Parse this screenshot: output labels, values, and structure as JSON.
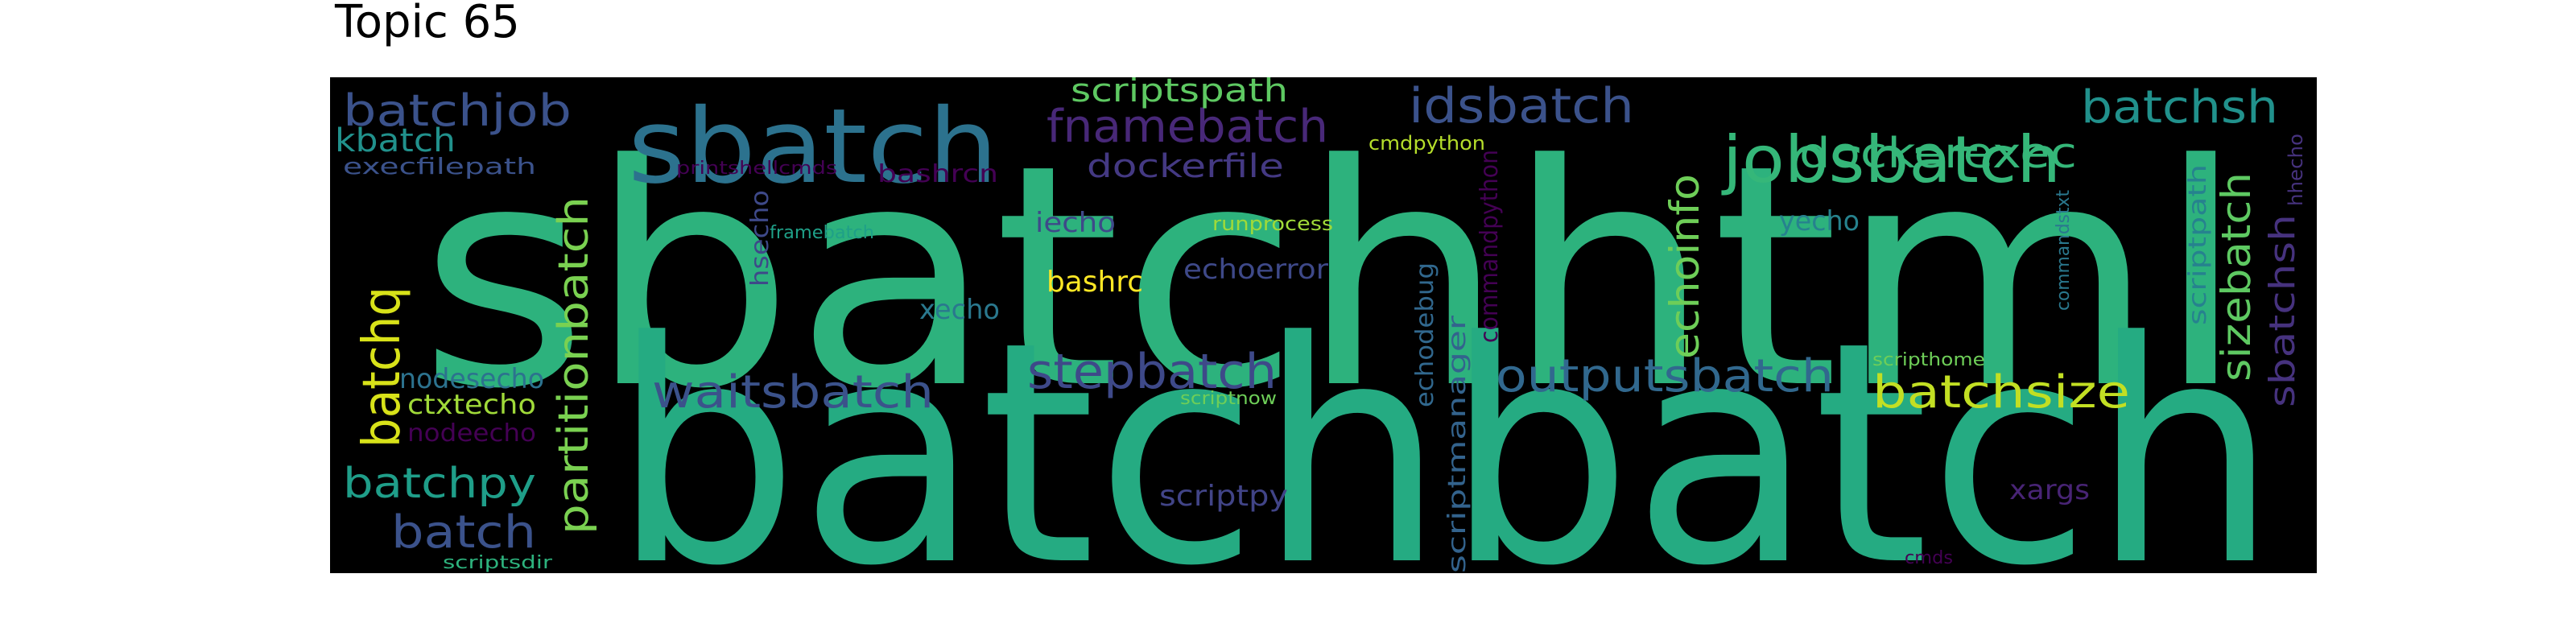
{
  "title": "Topic 65",
  "words": [
    {
      "text": "sbatchhtml",
      "color": "#2db27d"
    },
    {
      "text": "batchbatch",
      "color": "#25ab82"
    },
    {
      "text": "sbatch",
      "color": "#2c728e"
    },
    {
      "text": "jobsbatch",
      "color": "#35b779"
    },
    {
      "text": "idsbatch",
      "color": "#3b528b"
    },
    {
      "text": "batchjob",
      "color": "#3b528b"
    },
    {
      "text": "batchsh",
      "color": "#21918c"
    },
    {
      "text": "fnamebatch",
      "color": "#482878"
    },
    {
      "text": "dockerexec",
      "color": "#35b779"
    },
    {
      "text": "scriptspath",
      "color": "#5ec962"
    },
    {
      "text": "dockerfile",
      "color": "#443983"
    },
    {
      "text": "kbatch",
      "color": "#21918c"
    },
    {
      "text": "execfilepath",
      "color": "#3b528b"
    },
    {
      "text": "printshellcmds",
      "color": "#440154"
    },
    {
      "text": "bashrcn",
      "color": "#440154"
    },
    {
      "text": "cmdpython",
      "color": "#b5de2b"
    },
    {
      "text": "hhecho",
      "color": "#46327e"
    },
    {
      "text": "partitionbatch",
      "color": "#7ad151"
    },
    {
      "text": "batchq",
      "color": "#d8e219"
    },
    {
      "text": "echoinfo",
      "color": "#6ece58"
    },
    {
      "text": "commandpython",
      "color": "#440154"
    },
    {
      "text": "iecho",
      "color": "#3e4989"
    },
    {
      "text": "hsecho",
      "color": "#3e4989"
    },
    {
      "text": "framebatch",
      "color": "#1fa088"
    },
    {
      "text": "runprocess",
      "color": "#a0da39"
    },
    {
      "text": "yecho",
      "color": "#26828e"
    },
    {
      "text": "commandstxt",
      "color": "#2a788e"
    },
    {
      "text": "scriptpath",
      "color": "#26828e"
    },
    {
      "text": "sizebatch",
      "color": "#5ec962"
    },
    {
      "text": "sbatchsh",
      "color": "#46327e"
    },
    {
      "text": "echoerror",
      "color": "#3e4989"
    },
    {
      "text": "bashrc",
      "color": "#fde725"
    },
    {
      "text": "echodebug",
      "color": "#31688e"
    },
    {
      "text": "xecho",
      "color": "#2a788e"
    },
    {
      "text": "scriptmanager",
      "color": "#33638d"
    },
    {
      "text": "stepbatch",
      "color": "#3e4989"
    },
    {
      "text": "waitsbatch",
      "color": "#3b528b"
    },
    {
      "text": "outputsbatch",
      "color": "#31688e"
    },
    {
      "text": "batchsize",
      "color": "#c2df23"
    },
    {
      "text": "scripthome",
      "color": "#6ece58"
    },
    {
      "text": "nodesecho",
      "color": "#2c728e"
    },
    {
      "text": "ctxtecho",
      "color": "#a0da39"
    },
    {
      "text": "nodeecho",
      "color": "#440154"
    },
    {
      "text": "scriptnow",
      "color": "#6ece58"
    },
    {
      "text": "batchpy",
      "color": "#1f9e89"
    },
    {
      "text": "scriptpy",
      "color": "#414487"
    },
    {
      "text": "xargs",
      "color": "#482475"
    },
    {
      "text": "batch",
      "color": "#3b528b"
    },
    {
      "text": "scriptsdir",
      "color": "#2db27d"
    },
    {
      "text": "cmds",
      "color": "#440154"
    }
  ]
}
